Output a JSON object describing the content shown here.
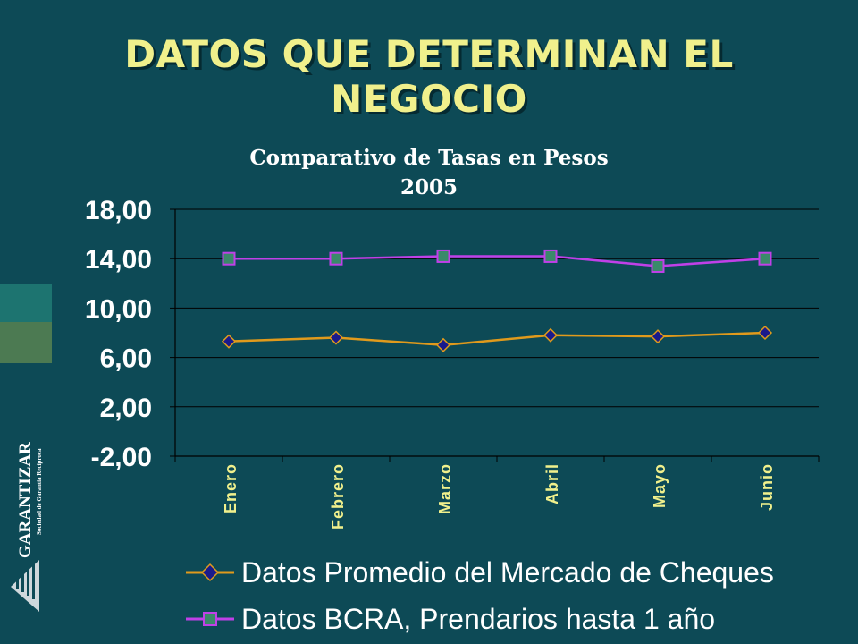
{
  "slide": {
    "title_line1": "DATOS QUE DETERMINAN EL",
    "title_line2": "NEGOCIO",
    "logo_name": "GARANTIZAR",
    "logo_tagline": "Sociedad de Garantía Recíproca"
  },
  "colors": {
    "background": "#0d4a56",
    "title": "#f0f08c",
    "series1_line": "#e09a1c",
    "series1_marker": "#1a1a8c",
    "series2_line": "#c040e8",
    "series2_marker": "#3a8a6a"
  },
  "chart_data": {
    "type": "line",
    "title_line1": "Comparativo de Tasas en Pesos",
    "title_line2": "2005",
    "categories": [
      "Enero",
      "Febrero",
      "Marzo",
      "Abril",
      "Mayo",
      "Junio"
    ],
    "series": [
      {
        "name": "Datos Promedio del Mercado de Cheques",
        "values": [
          7.3,
          7.6,
          7.0,
          7.8,
          7.7,
          8.0
        ],
        "marker": "diamond"
      },
      {
        "name": "Datos BCRA, Prendarios hasta 1 año",
        "values": [
          14.0,
          14.0,
          14.2,
          14.2,
          13.4,
          14.0
        ],
        "marker": "square"
      }
    ],
    "yticks": [
      "18,00",
      "14,00",
      "10,00",
      "6,00",
      "2,00",
      "-2,00"
    ],
    "ylim": [
      -2,
      18
    ],
    "grid": true,
    "legend": "bottom"
  }
}
